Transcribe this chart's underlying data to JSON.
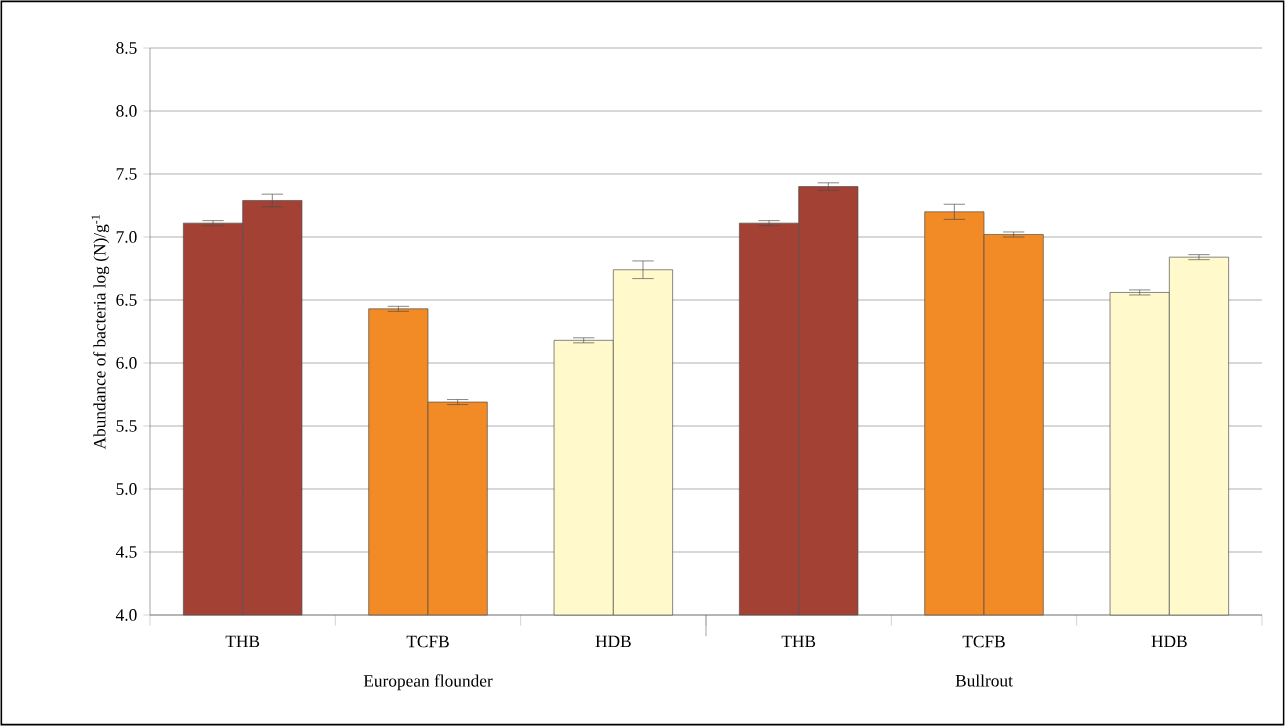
{
  "chart_data": {
    "type": "bar",
    "ylabel": "Abundance of bacteria log (N)/g$^{-1}$",
    "categories": [
      "THB",
      "TCFB",
      "HDB",
      "THB",
      "TCFB",
      "HDB"
    ],
    "series": [
      {
        "colors": [
          "#a34135",
          "#f28a26",
          "#fff9cc",
          "#a34135",
          "#f28a26",
          "#fff9cc"
        ],
        "values": [
          7.11,
          6.43,
          6.18,
          7.11,
          7.2,
          6.56
        ],
        "errors": [
          0.02,
          0.02,
          0.02,
          0.02,
          0.06,
          0.02
        ]
      },
      {
        "colors": [
          "#a34135",
          "#f28a26",
          "#fff9cc",
          "#a34135",
          "#f28a26",
          "#fff9cc"
        ],
        "values": [
          7.29,
          5.69,
          6.74,
          7.4,
          7.02,
          6.84
        ],
        "errors": [
          0.05,
          0.02,
          0.07,
          0.03,
          0.02,
          0.02
        ]
      }
    ],
    "annotations": [
      "European flounder",
      "Bullrout"
    ],
    "ylim": [
      4.0,
      8.5
    ],
    "yticks": [
      {
        "value": 4.0,
        "label": "4.0"
      },
      {
        "value": 4.5,
        "label": "4.5"
      },
      {
        "value": 5.0,
        "label": "5.0"
      },
      {
        "value": 5.5,
        "label": "5.5"
      },
      {
        "value": 6.0,
        "label": "6.0"
      },
      {
        "value": 6.5,
        "label": "6.5"
      },
      {
        "value": 7.0,
        "label": "7.0"
      },
      {
        "value": 7.5,
        "label": "7.5"
      },
      {
        "value": 8.0,
        "label": "8.0"
      },
      {
        "value": 8.5,
        "label": "8.5"
      }
    ],
    "grid": "y"
  }
}
